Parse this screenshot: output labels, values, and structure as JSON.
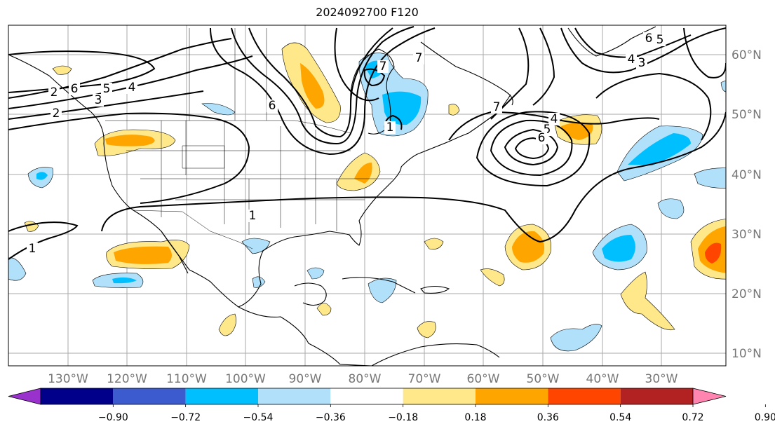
{
  "title": "2024092700 F120",
  "lon_labels": [
    "130°W",
    "120°W",
    "110°W",
    "100°W",
    "90°W",
    "80°W",
    "70°W",
    "60°W",
    "50°W",
    "40°W",
    "30°W"
  ],
  "lat_labels": [
    "60°N",
    "50°N",
    "40°N",
    "30°N",
    "20°N",
    "10°N"
  ],
  "colorbar": {
    "ticks": [
      "−0.90",
      "−0.72",
      "−0.54",
      "−0.36",
      "−0.18",
      "0.18",
      "0.36",
      "0.54",
      "0.72",
      "0.90"
    ],
    "colors": [
      "#9932cc",
      "#00008b",
      "#3b5bcf",
      "#00bfff",
      "#b0e0fa",
      "#ffffff",
      "#ffe88a",
      "#ffa500",
      "#ff4500",
      "#b22222",
      "#ff85b0"
    ]
  },
  "contour_labels": [
    "1",
    "1",
    "1",
    "2",
    "2",
    "3",
    "3",
    "4",
    "4",
    "4",
    "5",
    "5",
    "5",
    "6",
    "6",
    "6",
    "6",
    "7",
    "7",
    "7"
  ],
  "colors": {
    "text_axis": "#777777",
    "grid": "#aaaaaa",
    "coast": "#000000"
  }
}
